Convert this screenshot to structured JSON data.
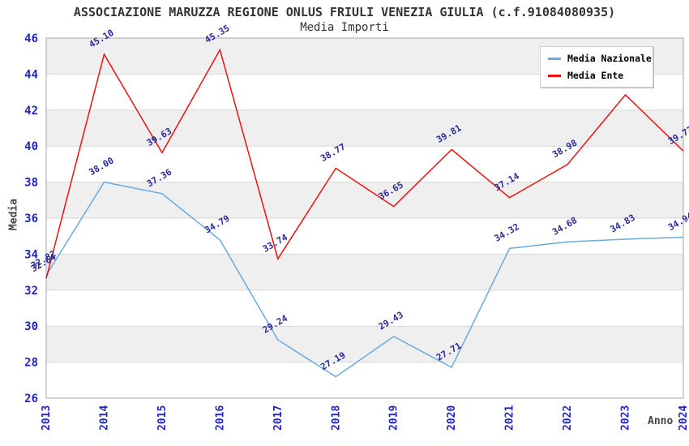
{
  "chart_data": {
    "type": "line",
    "title": "ASSOCIAZIONE MARUZZA REGIONE ONLUS FRIULI VENEZIA GIULIA (c.f.91084080935)",
    "subtitle": "Media Importi",
    "xlabel": "Anno",
    "ylabel": "Media",
    "x": [
      "2013",
      "2014",
      "2015",
      "2016",
      "2017",
      "2018",
      "2019",
      "2020",
      "2021",
      "2022",
      "2023",
      "2024"
    ],
    "series": [
      {
        "name": "Media Nazionale",
        "color": "#6aaade",
        "values": [
          32.82,
          38.0,
          37.36,
          34.79,
          29.24,
          27.19,
          29.43,
          27.71,
          34.32,
          34.68,
          34.83,
          34.94
        ]
      },
      {
        "name": "Media Ente",
        "color": "#f01010",
        "values": [
          32.64,
          45.1,
          39.63,
          45.35,
          33.74,
          38.77,
          36.65,
          39.81,
          37.14,
          38.98,
          42.85,
          39.73
        ]
      }
    ],
    "ylim": [
      26,
      46
    ],
    "ytick_step": 2,
    "label_decimals": 2,
    "legend_position": "top-right",
    "grid": {
      "band_color": "#efefef",
      "line_color": "#d9d9d9",
      "border_color": "#a6a6a6"
    },
    "tick_color": "#2323cc",
    "data_label_color": "#2b2b9b"
  }
}
